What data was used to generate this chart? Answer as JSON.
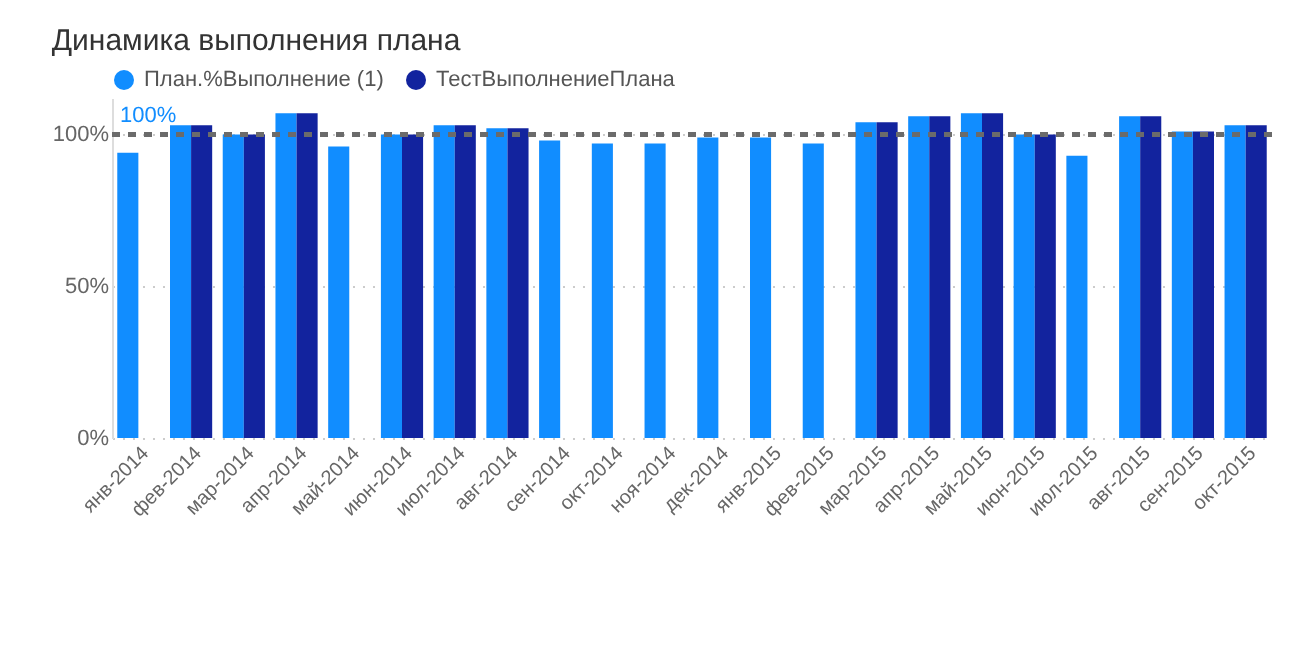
{
  "chart_data": {
    "type": "bar",
    "title": "Динамика выполнения плана",
    "categories": [
      "янв-2014",
      "фев-2014",
      "мар-2014",
      "апр-2014",
      "май-2014",
      "июн-2014",
      "июл-2014",
      "авг-2014",
      "сен-2014",
      "окт-2014",
      "ноя-2014",
      "дек-2014",
      "янв-2015",
      "фев-2015",
      "мар-2015",
      "апр-2015",
      "май-2015",
      "июн-2015",
      "июл-2015",
      "авг-2015",
      "сен-2015",
      "окт-2015"
    ],
    "series": [
      {
        "name": "План.%Выполнение (1)",
        "color": "#118dff",
        "values": [
          94,
          103,
          100,
          107,
          96,
          100,
          103,
          102,
          98,
          97,
          97,
          99,
          99,
          97,
          104,
          106,
          107,
          100,
          93,
          106,
          101,
          103
        ]
      },
      {
        "name": "ТестВыполнениеПлана",
        "color": "#12239e",
        "values": [
          null,
          103,
          100,
          107,
          null,
          100,
          103,
          102,
          null,
          null,
          null,
          null,
          null,
          null,
          104,
          106,
          107,
          100,
          null,
          106,
          101,
          103
        ]
      }
    ],
    "ylim": [
      0,
      112
    ],
    "yticks": [
      {
        "value": 0,
        "label": "0%"
      },
      {
        "value": 50,
        "label": "50%"
      },
      {
        "value": 100,
        "label": "100%"
      }
    ],
    "grid": "y",
    "legend": "top left",
    "ref_lines": [
      {
        "axis": "y",
        "value": 100,
        "label": "100%",
        "color": "#6b6b6b",
        "line_style": "dashed"
      }
    ]
  }
}
